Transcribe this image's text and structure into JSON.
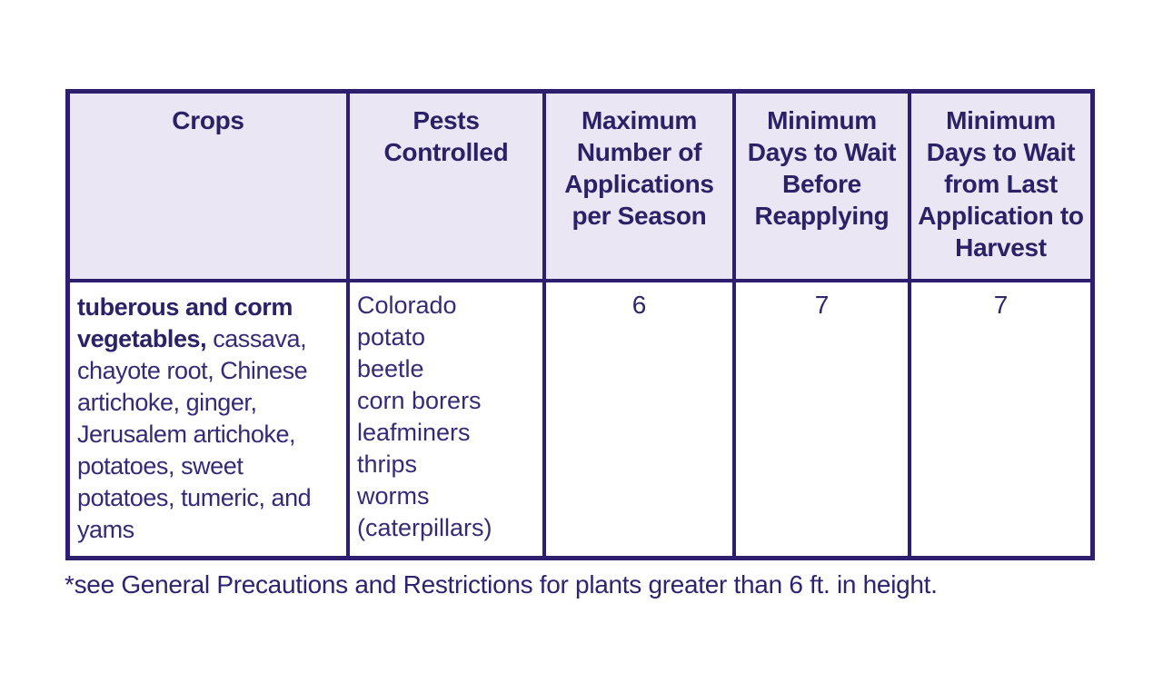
{
  "colors": {
    "table_border": "#2e1f6e",
    "header_background": "#ebe6f3",
    "header_text": "#2b2167",
    "body_text": "#352a76",
    "page_background": "#ffffff"
  },
  "table": {
    "columns": [
      {
        "id": "crops",
        "label": "Crops"
      },
      {
        "id": "pests_controlled",
        "label": "Pests Controlled"
      },
      {
        "id": "max_applications_per_season",
        "label": "Maximum Number of Applications per Season"
      },
      {
        "id": "min_days_wait_before_reapplying",
        "label": "Minimum Days to Wait Before Reapplying"
      },
      {
        "id": "min_days_wait_last_application_to_harvest",
        "label": "Minimum Days to Wait from Last Application to Harvest"
      }
    ],
    "rows": [
      {
        "crops": {
          "bold": "tuberous and corm vegetables,",
          "regular": " cassava, chayote root, Chinese artichoke, ginger, Jerusalem artichoke, potatoes, sweet potatoes, tumeric, and yams"
        },
        "pests": [
          "Colorado potato beetle",
          "corn borers",
          "leafminers",
          "thrips",
          "worms (caterpillars)"
        ],
        "max_applications_per_season": "6",
        "min_days_wait_before_reapplying": "7",
        "min_days_wait_last_application_to_harvest": "7"
      }
    ]
  },
  "footnote": {
    "text": "*see General Precautions and Restrictions for plants greater than 6 ft. in height."
  }
}
